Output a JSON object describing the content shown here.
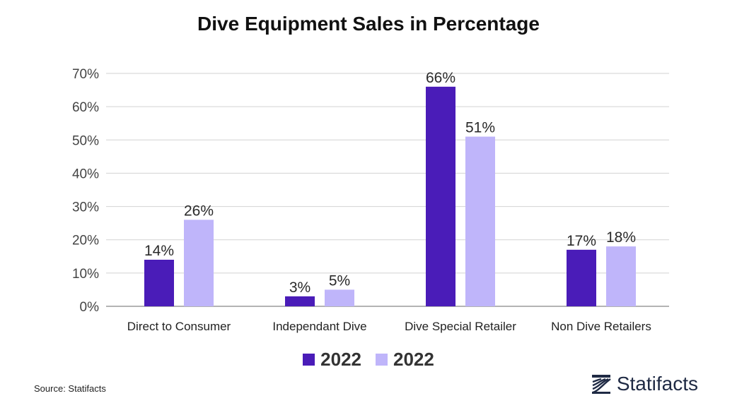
{
  "chart_data": {
    "type": "bar",
    "title": "Dive Equipment Sales in Percentage",
    "categories": [
      "Direct to Consumer",
      "Independant Dive",
      "Dive Special Retailer",
      "Non Dive Retailers"
    ],
    "series": [
      {
        "name": "2022",
        "color": "#4A1CB8",
        "values": [
          14,
          3,
          66,
          17
        ],
        "labels": [
          "14%",
          "3%",
          "66%",
          "17%"
        ]
      },
      {
        "name": "2022",
        "color": "#BFB5FA",
        "values": [
          26,
          5,
          51,
          18
        ],
        "labels": [
          "26%",
          "5%",
          "51%",
          "18%"
        ]
      }
    ],
    "ylim": [
      0,
      70
    ],
    "yticks": [
      0,
      10,
      20,
      30,
      40,
      50,
      60,
      70
    ],
    "ytick_labels": [
      "0%",
      "10%",
      "20%",
      "30%",
      "40%",
      "50%",
      "60%",
      "70%"
    ],
    "xlabel": "",
    "ylabel": "",
    "grid": true,
    "legend_position": "bottom-center"
  },
  "footer": {
    "source": "Source: Statifacts",
    "brand": "Statifacts",
    "brand_icon": "statifacts-logo-icon"
  }
}
